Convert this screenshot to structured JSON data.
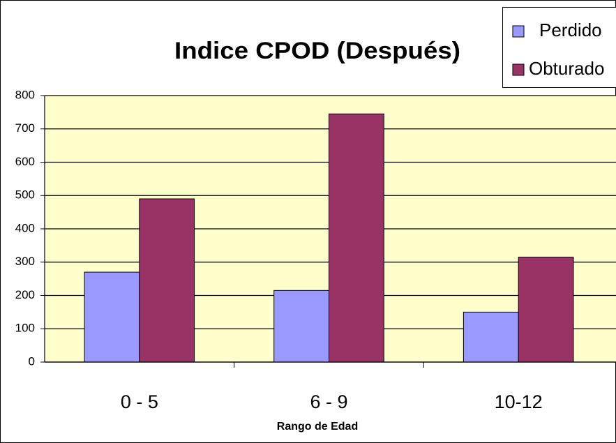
{
  "chart_data": {
    "type": "bar",
    "title": "Indice CPOD (Después)",
    "x_label": "Rango de Edad",
    "categories": [
      "0 - 5",
      "6 - 9",
      "10-12"
    ],
    "series": [
      {
        "name": "Perdido",
        "color": "#9999ff",
        "values": [
          270,
          215,
          150
        ]
      },
      {
        "name": "Obturado",
        "color": "#993366",
        "values": [
          490,
          745,
          315
        ]
      }
    ],
    "ylim": [
      0,
      800
    ],
    "yticks": [
      0,
      100,
      200,
      300,
      400,
      500,
      600,
      700,
      800
    ],
    "grid": true,
    "legend": "top-right",
    "plot_background": "#ffffcc"
  }
}
